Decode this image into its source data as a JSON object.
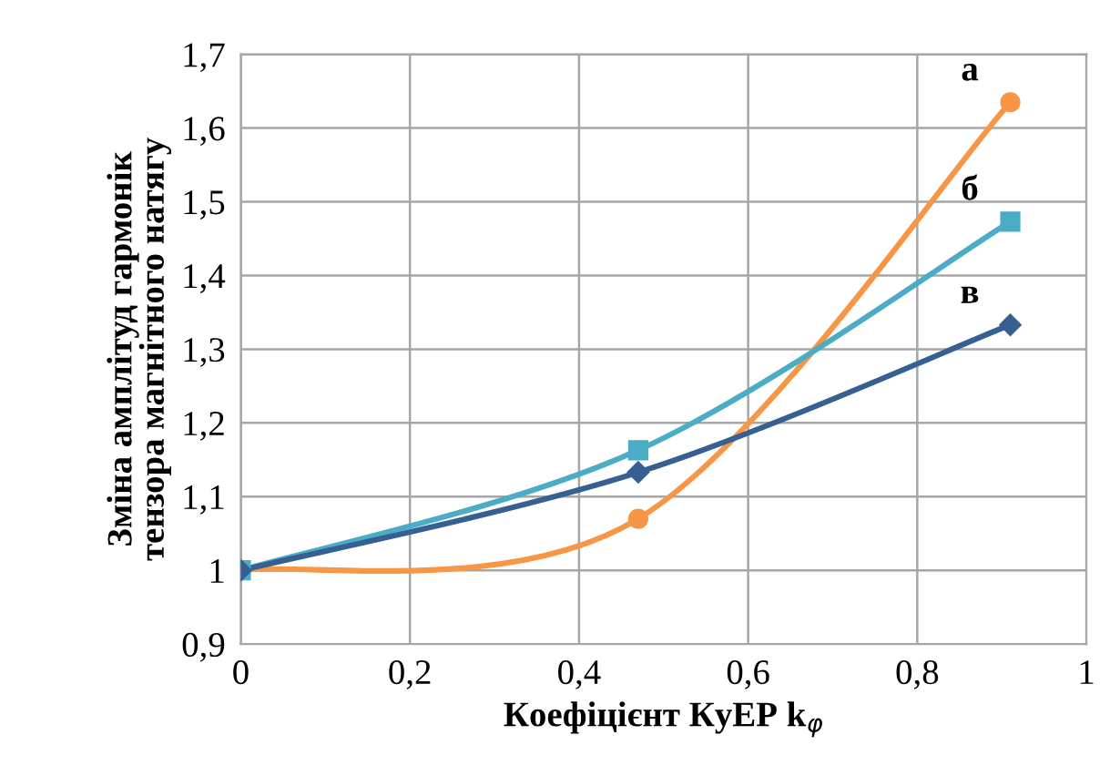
{
  "chart_data": {
    "type": "line",
    "xlabel": "Коефіцієнт КуЕР k$_{φ}$",
    "ylabel": "Зміна амплітуд гармонік\nтензора магнітного натягу",
    "x": [
      0,
      0.47,
      0.91
    ],
    "series": [
      {
        "name": "а",
        "color": "#f79646",
        "marker": "circle",
        "values": [
          1,
          1.07,
          1.635
        ]
      },
      {
        "name": "б",
        "color": "#4bacc6",
        "marker": "square",
        "values": [
          1,
          1.163,
          1.473
        ]
      },
      {
        "name": "в",
        "color": "#366092",
        "marker": "diamond",
        "values": [
          1,
          1.133,
          1.333
        ]
      }
    ],
    "xlim": [
      0,
      1
    ],
    "xticks": [
      0,
      {
        "value": 0.2,
        "label": "0,2"
      },
      {
        "value": 0.4,
        "label": "0,4"
      },
      {
        "value": 0.6,
        "label": "0,6"
      },
      {
        "value": 0.8,
        "label": "0,8"
      },
      1
    ],
    "ylim": [
      0.9,
      1.7
    ],
    "yticks": [
      {
        "value": 0.9,
        "label": "0,9"
      },
      1,
      {
        "value": 1.1,
        "label": "1,1"
      },
      {
        "value": 1.2,
        "label": "1,2"
      },
      {
        "value": 1.3,
        "label": "1,3"
      },
      {
        "value": 1.4,
        "label": "1,4"
      },
      {
        "value": 1.5,
        "label": "1,5"
      },
      {
        "value": 1.6,
        "label": "1,6"
      },
      {
        "value": 1.7,
        "label": "1,7"
      }
    ],
    "grid": true,
    "legend": false,
    "line_style": "solid"
  }
}
